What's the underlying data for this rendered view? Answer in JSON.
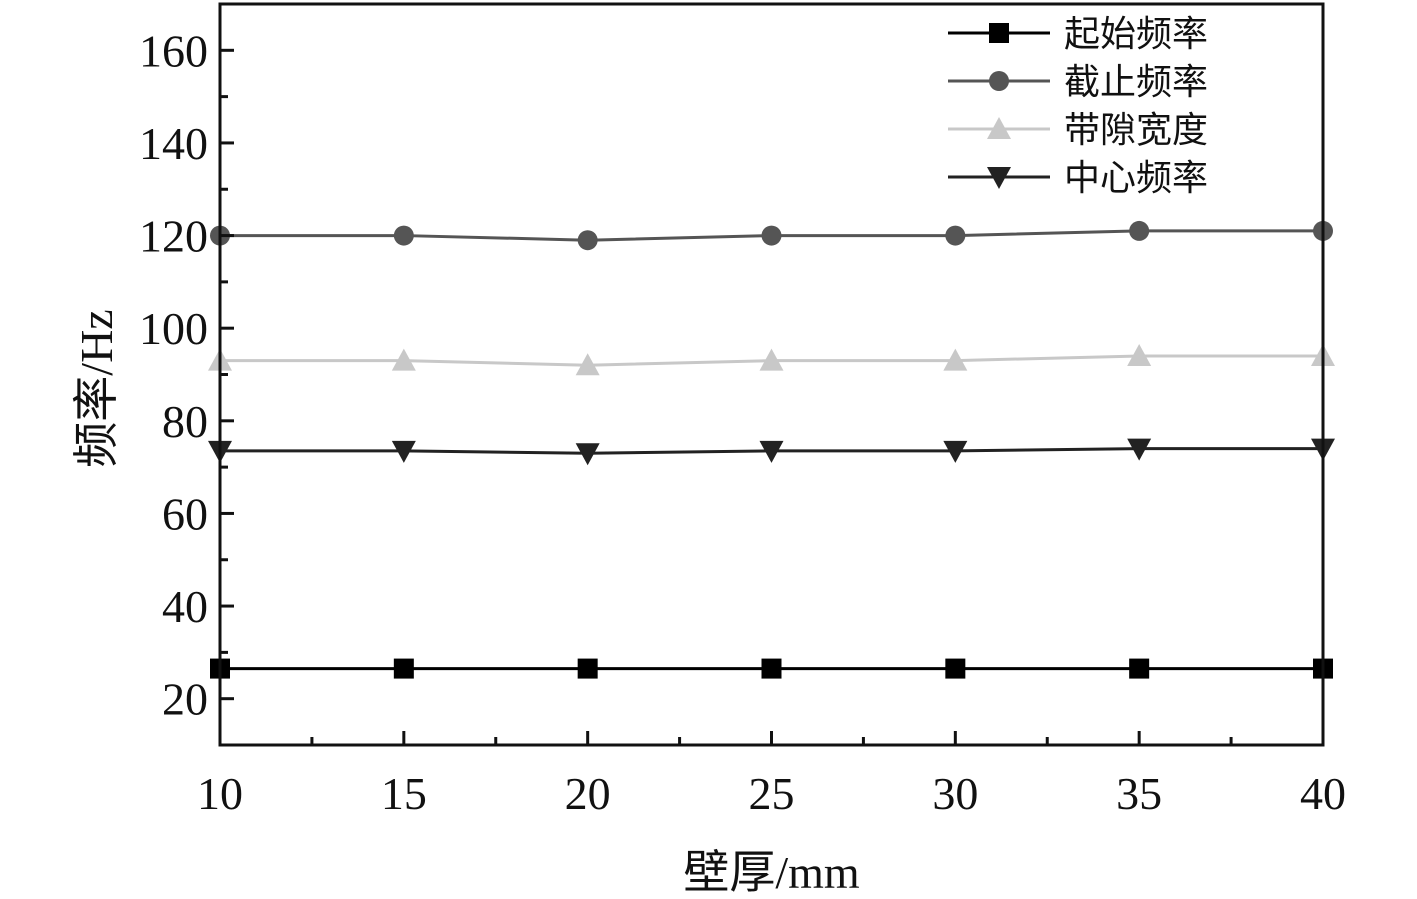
{
  "chart_data": {
    "type": "line",
    "xlabel": "壁厚/mm",
    "ylabel": "频率/Hz",
    "xlim": [
      10,
      40
    ],
    "ylim": [
      10,
      170
    ],
    "xticks": [
      10,
      15,
      20,
      25,
      30,
      35,
      40
    ],
    "yticks": [
      20,
      40,
      60,
      80,
      100,
      120,
      140,
      160
    ],
    "grid": false,
    "legend_position": "top-right",
    "x": [
      10,
      15,
      20,
      25,
      30,
      35,
      40
    ],
    "series": [
      {
        "name": "起始频率",
        "marker": "square",
        "color": "#000000",
        "values": [
          26.5,
          26.5,
          26.5,
          26.5,
          26.5,
          26.5,
          26.5
        ]
      },
      {
        "name": "截止频率",
        "marker": "circle",
        "color": "#555555",
        "values": [
          120,
          120,
          119,
          120,
          120,
          121,
          121
        ]
      },
      {
        "name": "带隙宽度",
        "marker": "triangle-up",
        "color": "#c8c8c8",
        "values": [
          93,
          93,
          92,
          93,
          93,
          94,
          94
        ]
      },
      {
        "name": "中心频率",
        "marker": "triangle-down",
        "color": "#222222",
        "values": [
          73.5,
          73.5,
          73,
          73.5,
          73.5,
          74,
          74
        ]
      }
    ]
  }
}
